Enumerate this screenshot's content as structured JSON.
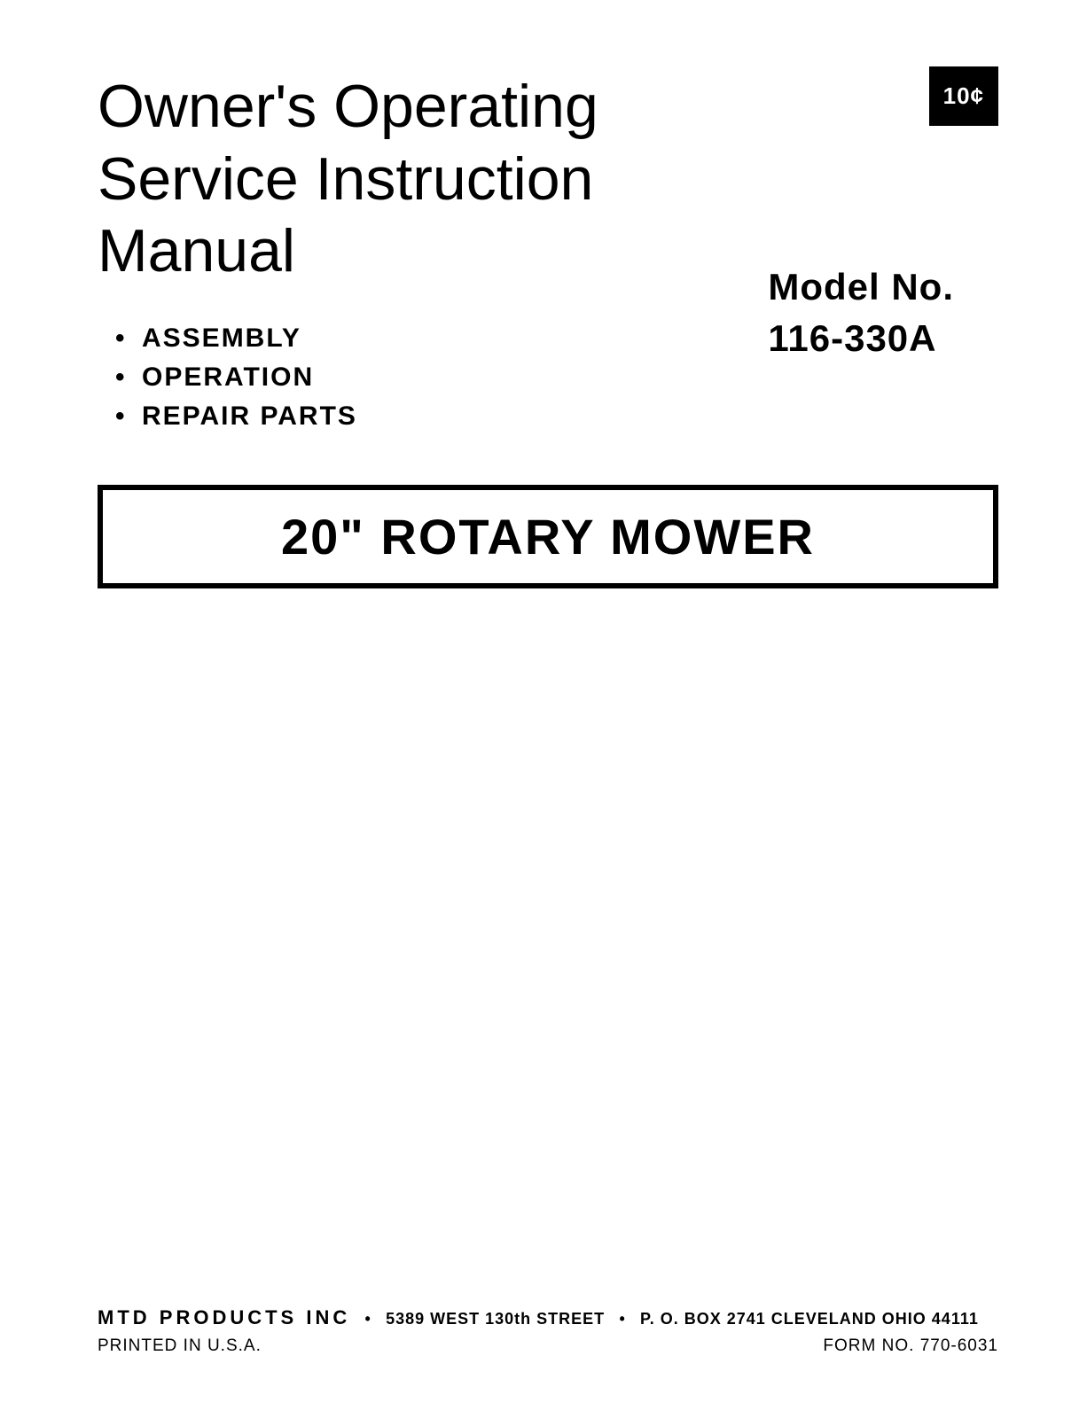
{
  "price_box": "10¢",
  "title": {
    "line1": "Owner's Operating",
    "line2": "Service Instruction",
    "line3": "Manual"
  },
  "model": {
    "label": "Model No.",
    "number": "116-330A"
  },
  "contents": {
    "item1": "ASSEMBLY",
    "item2": "OPERATION",
    "item3": "REPAIR PARTS"
  },
  "product_title": "20\" ROTARY MOWER",
  "footer": {
    "company": "MTD PRODUCTS INC",
    "address_street": "5389 WEST 130th STREET",
    "address_pobox": "P. O. BOX 2741 CLEVELAND OHIO 44111",
    "printed": "PRINTED IN U.S.A.",
    "form_no": "FORM NO. 770-6031"
  },
  "styling": {
    "background_color": "#ffffff",
    "text_color": "#000000",
    "price_box_bg": "#000000",
    "price_box_fg": "#ffffff",
    "title_fontsize": 68,
    "model_fontsize": 42,
    "contents_fontsize": 30,
    "product_fontsize": 56,
    "product_border_width": 6,
    "footer_fontsize": 19
  }
}
